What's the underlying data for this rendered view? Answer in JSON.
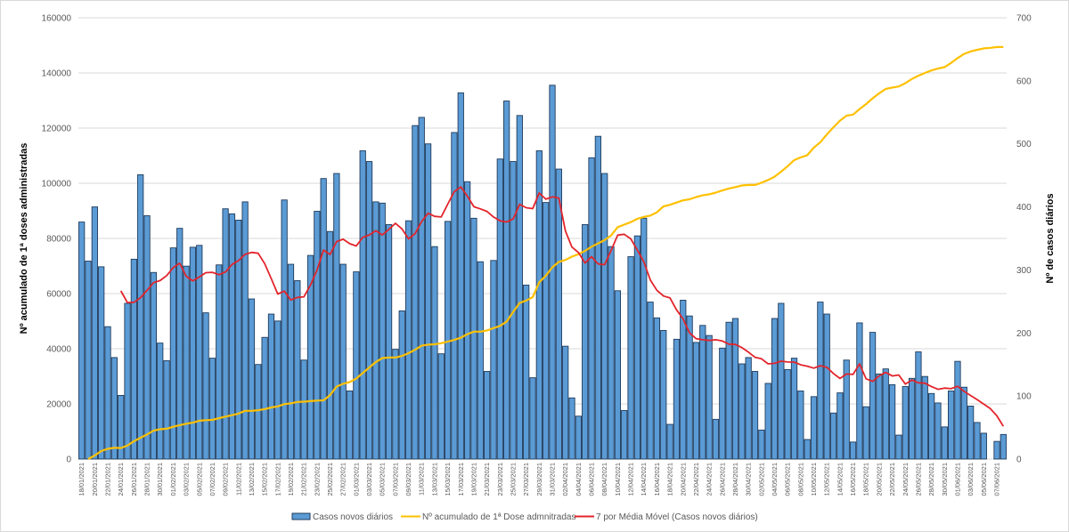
{
  "chart_data": {
    "type": "bar+line",
    "title": "",
    "y_left": {
      "label": "Nº acumulado de 1ª doses administradas",
      "ylim": [
        0,
        160000
      ],
      "ticks": [
        0,
        20000,
        40000,
        60000,
        80000,
        100000,
        120000,
        140000,
        160000
      ]
    },
    "y_right": {
      "label": "Nº de casos diários",
      "ylim": [
        0,
        700
      ],
      "ticks": [
        0,
        100,
        200,
        300,
        400,
        500,
        600,
        700
      ]
    },
    "grid": true,
    "legend_position": "bottom",
    "x_start": "18/01/2021",
    "x_end": "08/06/2021",
    "x_tick_labels": [
      "18/01/2021",
      "20/01/2021",
      "22/01/2021",
      "24/01/2021",
      "26/01/2021",
      "28/01/2021",
      "30/01/2021",
      "01/02/2021",
      "03/02/2021",
      "05/02/2021",
      "07/02/2021",
      "09/02/2021",
      "11/02/2021",
      "13/02/2021",
      "15/02/2021",
      "17/02/2021",
      "19/02/2021",
      "21/02/2021",
      "23/02/2021",
      "25/02/2021",
      "27/02/2021",
      "01/03/2021",
      "03/03/2021",
      "05/03/2021",
      "07/03/2021",
      "09/03/2021",
      "11/03/2021",
      "13/03/2021",
      "15/03/2021",
      "17/03/2021",
      "19/03/2021",
      "21/03/2021",
      "23/03/2021",
      "25/03/2021",
      "27/03/2021",
      "29/03/2021",
      "31/03/2021",
      "02/04/2021",
      "04/04/2021",
      "06/04/2021",
      "08/04/2021",
      "10/04/2021",
      "12/04/2021",
      "14/04/2021",
      "16/04/2021",
      "18/04/2021",
      "20/04/2021",
      "22/04/2021",
      "24/04/2021",
      "26/04/2021",
      "28/04/2021",
      "30/04/2021",
      "02/05/2021",
      "04/05/2021",
      "06/05/2021",
      "08/05/2021",
      "10/05/2021",
      "12/05/2021",
      "14/05/2021",
      "16/05/2021",
      "18/05/2021",
      "20/05/2021",
      "22/05/2021",
      "24/05/2021",
      "26/05/2021",
      "28/05/2021",
      "30/05/2021",
      "01/06/2021",
      "03/06/2021",
      "05/06/2021",
      "07/06/2021"
    ],
    "series": [
      {
        "name": "Casos novos diários",
        "type": "bar",
        "axis": "right",
        "color": "#5b9bd5",
        "values": [
          376,
          314,
          400,
          305,
          210,
          161,
          101,
          247,
          317,
          451,
          386,
          296,
          184,
          156,
          335,
          366,
          306,
          336,
          339,
          232,
          160,
          308,
          397,
          389,
          379,
          408,
          254,
          150,
          193,
          230,
          219,
          411,
          309,
          283,
          157,
          323,
          393,
          445,
          361,
          453,
          309,
          108,
          297,
          489,
          472,
          408,
          406,
          372,
          174,
          235,
          378,
          529,
          542,
          500,
          337,
          167,
          377,
          518,
          581,
          440,
          382,
          313,
          139,
          315,
          476,
          568,
          472,
          545,
          276,
          129,
          489,
          407,
          593,
          460,
          179,
          97,
          68,
          372,
          478,
          512,
          453,
          337,
          267,
          77,
          321,
          354,
          382,
          249,
          224,
          204,
          55,
          190,
          252,
          227,
          185,
          212,
          196,
          63,
          176,
          217,
          223,
          151,
          161,
          139,
          46,
          120,
          223,
          247,
          142,
          160,
          108,
          31,
          99,
          249,
          230,
          73,
          105,
          157,
          27,
          216,
          83,
          201,
          135,
          143,
          118,
          38,
          115,
          128,
          170,
          131,
          104,
          89,
          51,
          108,
          155,
          114,
          84,
          58,
          41,
          null,
          28,
          39
        ]
      },
      {
        "name": "Nº acumulado de 1ª Dose admnitradas",
        "type": "line",
        "axis": "left",
        "color": "#ffc000",
        "values": [
          null,
          0,
          1300,
          2900,
          3700,
          4100,
          4000,
          4900,
          6500,
          7700,
          8900,
          10300,
          10800,
          11000,
          11700,
          12300,
          12800,
          13200,
          13900,
          14100,
          14200,
          14800,
          15400,
          15900,
          16500,
          17500,
          17500,
          17700,
          18100,
          18700,
          19100,
          19900,
          20200,
          20700,
          20800,
          21000,
          21200,
          21300,
          23200,
          26300,
          27300,
          27900,
          29200,
          31200,
          33200,
          35200,
          36600,
          36800,
          36800,
          37400,
          38400,
          39600,
          41100,
          41500,
          41600,
          42000,
          42600,
          43200,
          44000,
          45300,
          46200,
          46200,
          46600,
          47500,
          48300,
          49800,
          53300,
          56600,
          57500,
          58700,
          64100,
          66500,
          69500,
          71500,
          72200,
          73400,
          74300,
          75500,
          77000,
          78200,
          79400,
          81100,
          84100,
          85000,
          85900,
          87100,
          87800,
          88300,
          89500,
          91600,
          92200,
          93000,
          93800,
          94200,
          95000,
          95600,
          96000,
          96600,
          97400,
          98100,
          98600,
          99200,
          99400,
          99400,
          100200,
          101200,
          102400,
          104200,
          106200,
          108400,
          109400,
          110200,
          112900,
          114900,
          117700,
          120300,
          122700,
          124500,
          124900,
          126900,
          128700,
          130800,
          132600,
          134200,
          134700,
          135100,
          136300,
          137800,
          139000,
          140000,
          140900,
          141600,
          142100,
          143600,
          145400,
          146900,
          147800,
          148400,
          148900,
          149100,
          149400,
          149400
        ]
      },
      {
        "name": "7 por Média Móvel (Casos novos diários)",
        "type": "line",
        "axis": "right",
        "color": "#e3242b",
        "moving_average_window": 7,
        "of_series": "Casos novos diários"
      }
    ]
  }
}
